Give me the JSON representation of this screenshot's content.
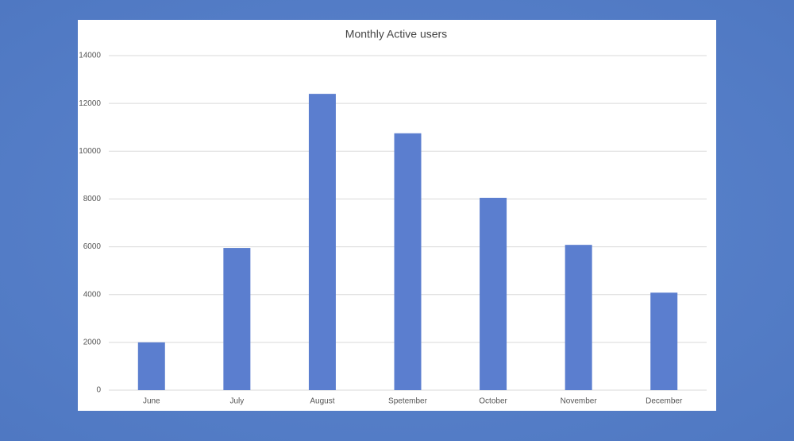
{
  "chart_data": {
    "type": "bar",
    "title": "Monthly Active users",
    "categories": [
      "June",
      "July",
      "August",
      "Spetember",
      "October",
      "November",
      "December"
    ],
    "values": [
      2000,
      5950,
      12400,
      10750,
      8050,
      6080,
      4080
    ],
    "color": "#5b7ecf",
    "ylim": [
      0,
      14000
    ],
    "yticks": [
      0,
      2000,
      4000,
      6000,
      8000,
      10000,
      12000,
      14000
    ],
    "grid": true
  }
}
